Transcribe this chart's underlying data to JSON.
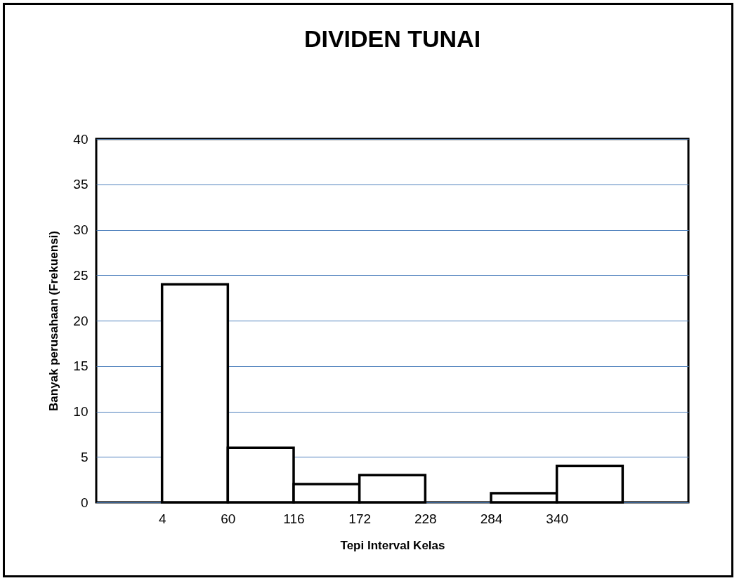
{
  "chart_data": {
    "type": "histogram",
    "title": "DIVIDEN TUNAI",
    "xlabel": "Tepi Interval Kelas",
    "ylabel": "Banyak perusahaan (Frekuensi)",
    "bins": [
      4,
      60,
      116,
      172,
      228,
      284,
      340,
      396
    ],
    "values": [
      24,
      6,
      2,
      3,
      0,
      1,
      4
    ],
    "color": "#ffffff",
    "xlim": [
      -52,
      452
    ],
    "xticks": [
      4,
      60,
      116,
      172,
      228,
      284,
      340
    ],
    "ylim": [
      0,
      40
    ],
    "yticks": [
      0,
      5,
      10,
      15,
      20,
      25,
      30,
      35,
      40
    ],
    "grid": "y"
  }
}
